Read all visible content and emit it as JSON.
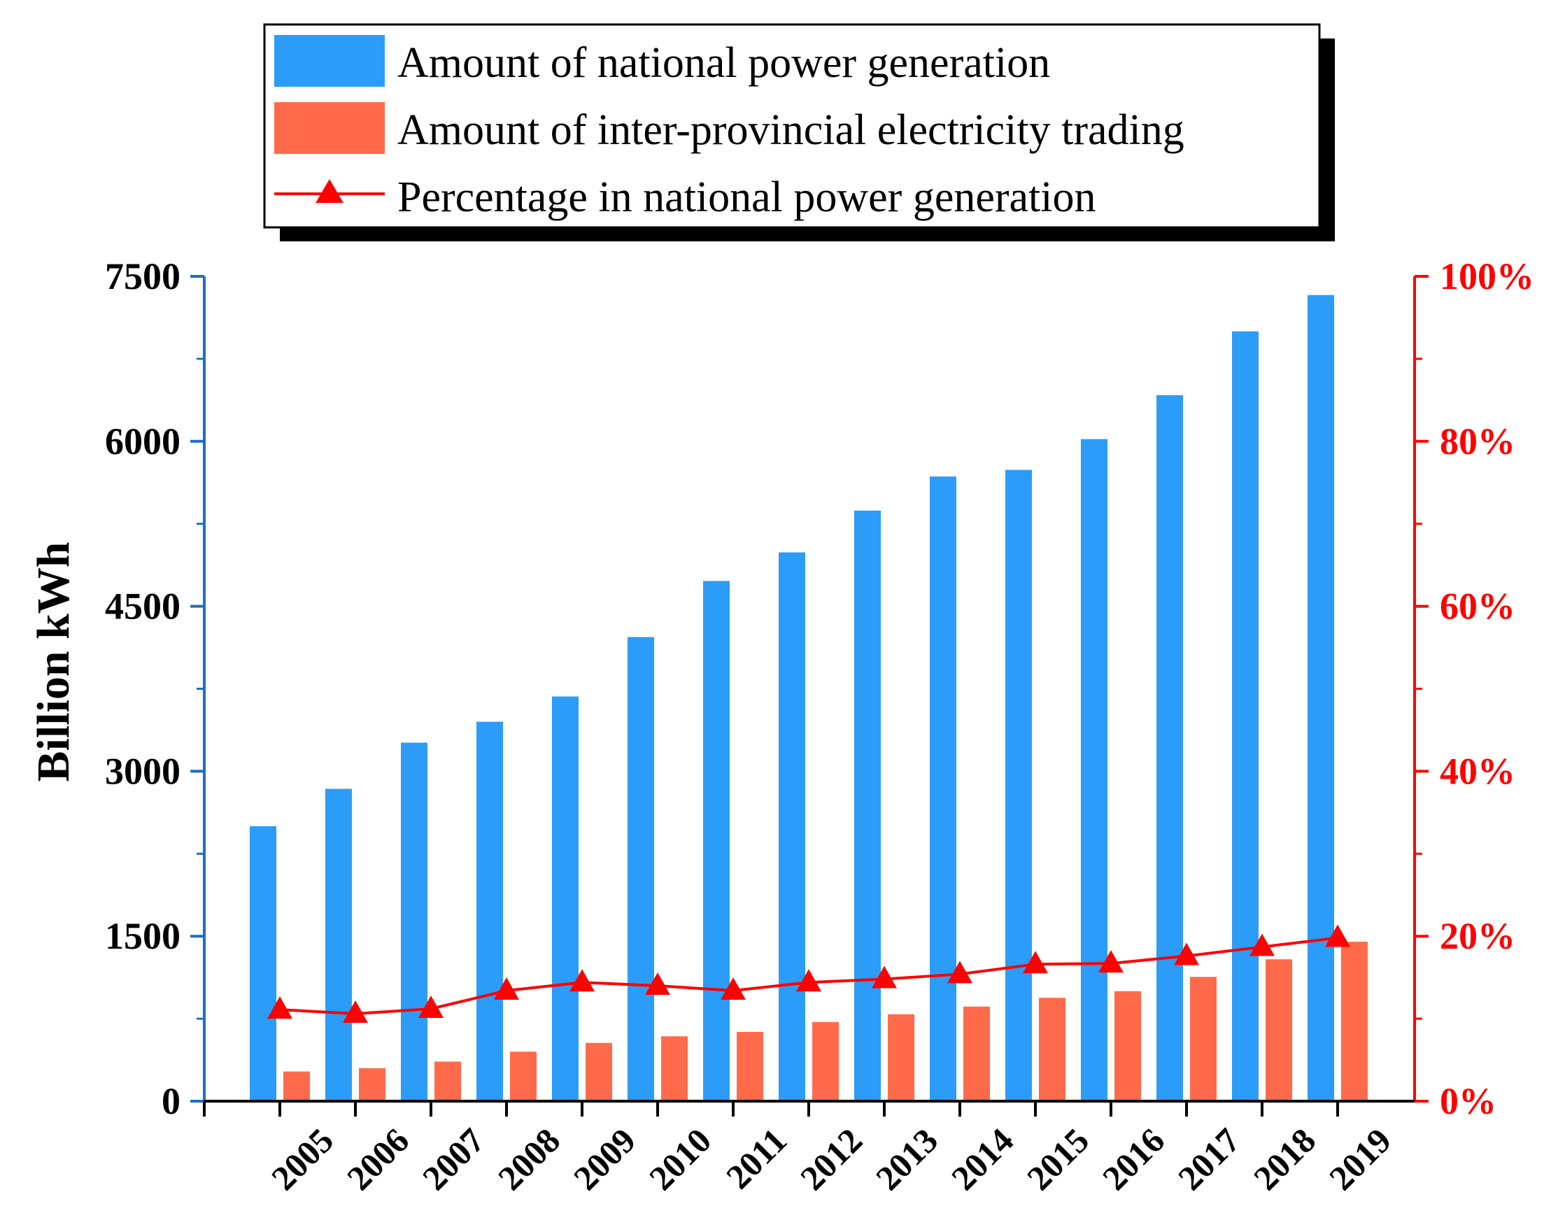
{
  "chart_data": {
    "type": "bar",
    "title": "",
    "xlabel": "",
    "ylabel": "Billion kWh",
    "ylim": [
      0,
      7500
    ],
    "y2lim": [
      0,
      100
    ],
    "yticks": [
      "0",
      "1500",
      "3000",
      "4500",
      "6000",
      "7500"
    ],
    "y2ticks": [
      "0%",
      "20%",
      "40%",
      "60%",
      "80%",
      "100%"
    ],
    "categories": [
      "2005",
      "2006",
      "2007",
      "2008",
      "2009",
      "2010",
      "2011",
      "2012",
      "2013",
      "2014",
      "2015",
      "2016",
      "2017",
      "2018",
      "2019"
    ],
    "legend_position": "top",
    "series": [
      {
        "name": "Amount of national power generation",
        "kind": "bar",
        "axis": "left",
        "color": "#2b9cf8",
        "values": [
          2500,
          2840,
          3260,
          3450,
          3680,
          4220,
          4730,
          4990,
          5370,
          5680,
          5740,
          6020,
          6420,
          7000,
          7330
        ]
      },
      {
        "name": "Amount of inter-provincial electricity trading",
        "kind": "bar",
        "axis": "left",
        "color": "#ff6b4a",
        "values": [
          270,
          300,
          360,
          450,
          530,
          590,
          630,
          720,
          790,
          860,
          940,
          1000,
          1130,
          1290,
          1450
        ]
      },
      {
        "name": "Percentage in national power generation",
        "kind": "line",
        "axis": "right",
        "unit": "%",
        "color": "#ff0000",
        "values": [
          11.1,
          10.6,
          11.2,
          13.4,
          14.4,
          14.0,
          13.4,
          14.4,
          14.8,
          15.4,
          16.6,
          16.7,
          17.6,
          18.7,
          19.8
        ]
      }
    ]
  }
}
